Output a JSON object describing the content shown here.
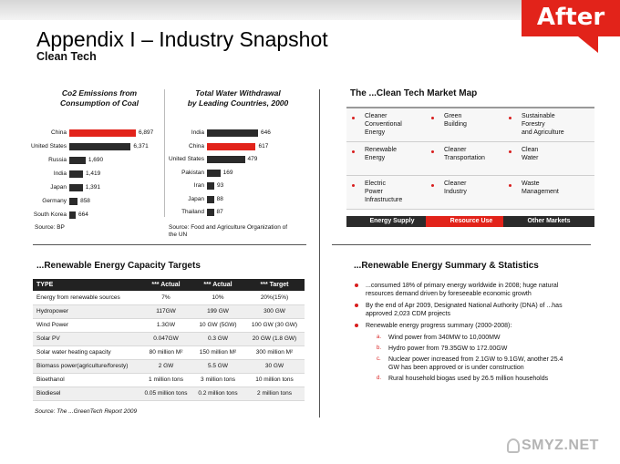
{
  "badge": {
    "label": "After",
    "color": "#e2231a"
  },
  "header": {
    "title": "Appendix I – Industry Snapshot",
    "subtitle": "Clean Tech"
  },
  "co2_chart": {
    "title_line1": "Co2 Emissions from",
    "title_line2": "Consumption of Coal",
    "source": "Source: BP",
    "chart_data": {
      "type": "bar",
      "orientation": "horizontal",
      "categories": [
        "China",
        "United States",
        "Russia",
        "India",
        "Japan",
        "Germany",
        "South Korea"
      ],
      "values": [
        6897,
        6371,
        1690,
        1419,
        1391,
        858,
        664
      ],
      "labels": [
        "6,897",
        "6,371",
        "1,690",
        "1,419",
        "1,391",
        "858",
        "664"
      ],
      "highlight": "China",
      "highlight_color": "#e2231a",
      "bar_color": "#2b2b2b"
    }
  },
  "water_chart": {
    "title_line1": "Total Water Withdrawal",
    "title_line2": "by Leading Countries, 2000",
    "source_line1": "Source: Food and Agriculture Organization of",
    "source_line2": "the UN",
    "chart_data": {
      "type": "bar",
      "orientation": "horizontal",
      "categories": [
        "India",
        "China",
        "United States",
        "Pakistan",
        "Iran",
        "Japan",
        "Thailand"
      ],
      "values": [
        646,
        617,
        479,
        169,
        93,
        88,
        87
      ],
      "labels": [
        "646",
        "617",
        "479",
        "169",
        "93",
        "88",
        "87"
      ],
      "highlight": "China",
      "highlight_color": "#e2231a",
      "bar_color": "#2b2b2b"
    }
  },
  "market_map": {
    "title": "The ...Clean Tech Market Map",
    "columns": [
      {
        "items": [
          [
            "Cleaner",
            "Conventional",
            "Energy"
          ],
          [
            "Renewable",
            "Energy"
          ],
          [
            "Electric",
            "Power",
            "Infrastructure"
          ]
        ],
        "footer": "Energy Supply",
        "footer_color": "#2b2b2b"
      },
      {
        "items": [
          [
            "Green",
            "Building"
          ],
          [
            "Cleaner",
            "Transportation"
          ],
          [
            "Cleaner",
            "Industry"
          ]
        ],
        "footer": "Resource Use",
        "footer_color": "#e2231a"
      },
      {
        "items": [
          [
            "Sustainable",
            "Forestry",
            "and Agriculture"
          ],
          [
            "Clean",
            "Water"
          ],
          [
            "Waste",
            "Management"
          ]
        ],
        "footer": "Other Markets",
        "footer_color": "#2b2b2b"
      }
    ]
  },
  "capacity": {
    "title": "...Renewable Energy Capacity Targets",
    "headers": [
      "TYPE",
      "*** Actual",
      "*** Actual",
      "*** Target"
    ],
    "rows": [
      [
        "Energy from renewable sources",
        "7%",
        "10%",
        "20%(15%)"
      ],
      [
        "Hydropower",
        "117GW",
        "199 GW",
        "300 GW"
      ],
      [
        "Wind Power",
        "1.3GW",
        "10 GW (5GW)",
        "100 GW (30 GW)"
      ],
      [
        "Solar PV",
        "0.047GW",
        "0.3 GW",
        "20 GW (1.8 GW)"
      ],
      [
        "Solar water heating capacity",
        "80 million M²",
        "150 million M²",
        "300 million M²"
      ],
      [
        "Biomass power(agriculture/foresty)",
        "2 GW",
        "5.5 GW",
        "30 GW"
      ],
      [
        "Bioethanol",
        "1 million tons",
        "3 million tons",
        "10 million tons"
      ],
      [
        "Biodiesel",
        "0.05 million tons",
        "0.2 million tons",
        "2 million tons"
      ]
    ],
    "source": "Source: The ...GreenTech Report 2009"
  },
  "summary": {
    "title": "...Renewable Energy Summary & Statistics",
    "bullets": [
      "...consumed 18% of primary energy worldwide in 2008; huge natural resources demand driven by foreseeable economic growth",
      "By the end of Apr 2009, Designated National Authority (DNA) of ...has approved 2,023 CDM projects",
      "Renewable energy progress summary (2000-2008):"
    ],
    "sub_items": [
      {
        "letter": "a.",
        "text": "Wind power from 340MW to 10,000MW"
      },
      {
        "letter": "b.",
        "text": "Hydro power from 79.35GW to 172.00GW"
      },
      {
        "letter": "c.",
        "text": "Nuclear power increased from 2.1GW to 9.1GW, another 25.4 GW has been approved or is under construction"
      },
      {
        "letter": "d.",
        "text": "Rural household biogas used by 26.5 million households"
      }
    ]
  },
  "watermark": {
    "text": "SMYZ.NET"
  }
}
